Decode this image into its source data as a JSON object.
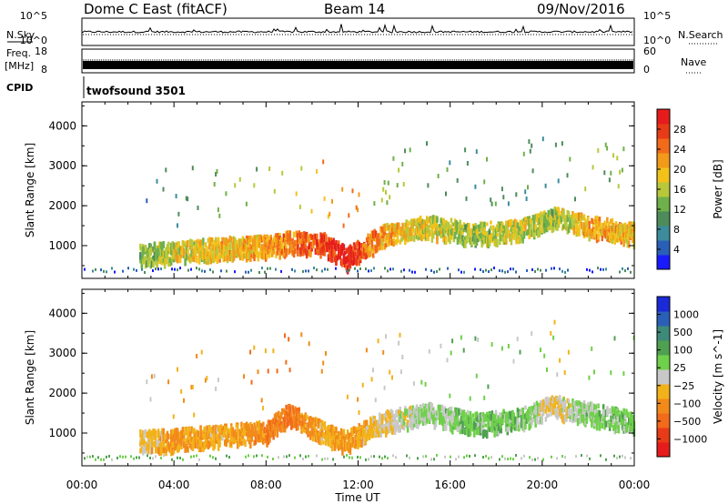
{
  "header": {
    "station": "Dome C East (fitACF)",
    "beam": "Beam 14",
    "date": "09/Nov/2016"
  },
  "strip_labels": {
    "nsky": "N.Sky",
    "freq_top": "Freq.",
    "freq_unit": "[MHz]",
    "cpid": "CPID",
    "nsearch": "N.Search",
    "nave": "Nave",
    "nsky_ticks": [
      "10^5",
      "10^0"
    ],
    "nsearch_ticks": [
      "10^5",
      "10^0"
    ],
    "freq_ticks": [
      "18",
      "8"
    ],
    "nave_ticks": [
      "60",
      "0"
    ],
    "cpid_text": "twofsound 3501"
  },
  "chart_data": [
    {
      "type": "heatmap",
      "title": "",
      "xlabel": "Time UT",
      "ylabel": "Slant Range [km]",
      "x_ticks": [
        "00:00",
        "04:00",
        "08:00",
        "12:00",
        "16:00",
        "20:00",
        "00:00"
      ],
      "y_ticks": [
        "1000",
        "2000",
        "3000",
        "4000"
      ],
      "xlim_hours": [
        0,
        24
      ],
      "ylim_km": [
        180,
        4600
      ],
      "colorbar": {
        "label": "Power [dB]",
        "ticks": [
          "4",
          "8",
          "12",
          "16",
          "20",
          "24",
          "28"
        ],
        "range": [
          0,
          30
        ],
        "colors": [
          "#1a1aff",
          "#2a5fb8",
          "#3c8c9c",
          "#4d8c5a",
          "#6fb04a",
          "#b8c83a",
          "#f2c21a",
          "#f29a1a",
          "#f26a1a",
          "#e83b17",
          "#e61c1c"
        ]
      },
      "echo_band": [
        {
          "t": 2.5,
          "r": 800,
          "level": 12
        },
        {
          "t": 4.0,
          "r": 850,
          "level": 16
        },
        {
          "t": 6.0,
          "r": 950,
          "level": 18
        },
        {
          "t": 8.0,
          "r": 1000,
          "level": 20
        },
        {
          "t": 9.0,
          "r": 1100,
          "level": 22
        },
        {
          "t": 10.5,
          "r": 1050,
          "level": 26
        },
        {
          "t": 11.5,
          "r": 700,
          "level": 28
        },
        {
          "t": 13.0,
          "r": 1250,
          "level": 20
        },
        {
          "t": 15.0,
          "r": 1500,
          "level": 16
        },
        {
          "t": 17.0,
          "r": 1300,
          "level": 14
        },
        {
          "t": 19.0,
          "r": 1400,
          "level": 16
        },
        {
          "t": 20.5,
          "r": 1700,
          "level": 14
        },
        {
          "t": 22.0,
          "r": 1500,
          "level": 20
        },
        {
          "t": 24.0,
          "r": 1300,
          "level": 18
        }
      ]
    },
    {
      "type": "heatmap",
      "title": "",
      "xlabel": "Time UT",
      "ylabel": "Slant Range [km]",
      "x_ticks": [
        "00:00",
        "04:00",
        "08:00",
        "12:00",
        "16:00",
        "20:00",
        "00:00"
      ],
      "y_ticks": [
        "1000",
        "2000",
        "3000",
        "4000"
      ],
      "xlim_hours": [
        0,
        24
      ],
      "ylim_km": [
        180,
        4600
      ],
      "colorbar": {
        "label": "Velocity [m s^-1]",
        "ticks": [
          "1000",
          "500",
          "100",
          "25",
          "−25",
          "−100",
          "−500",
          "−1000"
        ],
        "range": [
          -1000,
          1000
        ],
        "colors": [
          "#1a2ad6",
          "#2a5fb8",
          "#3d8a78",
          "#4fa050",
          "#6fd04a",
          "#c8c8c8",
          "#f2b21a",
          "#f28a1a",
          "#f26a1a",
          "#e83b17",
          "#e61c1c"
        ]
      },
      "echo_band": [
        {
          "t": 2.5,
          "r": 800,
          "vel": -100
        },
        {
          "t": 4.0,
          "r": 850,
          "vel": -300
        },
        {
          "t": 6.0,
          "r": 950,
          "vel": -200
        },
        {
          "t": 8.0,
          "r": 1050,
          "vel": -400
        },
        {
          "t": 9.0,
          "r": 1500,
          "vel": -500
        },
        {
          "t": 10.5,
          "r": 1000,
          "vel": -200
        },
        {
          "t": 11.5,
          "r": 800,
          "vel": -300
        },
        {
          "t": 13.0,
          "r": 1300,
          "vel": -100
        },
        {
          "t": 15.0,
          "r": 1500,
          "vel": 100
        },
        {
          "t": 17.0,
          "r": 1250,
          "vel": 200
        },
        {
          "t": 19.0,
          "r": 1350,
          "vel": 200
        },
        {
          "t": 20.5,
          "r": 1700,
          "vel": -100
        },
        {
          "t": 22.0,
          "r": 1500,
          "vel": 150
        },
        {
          "t": 24.0,
          "r": 1300,
          "vel": 200
        }
      ]
    }
  ]
}
